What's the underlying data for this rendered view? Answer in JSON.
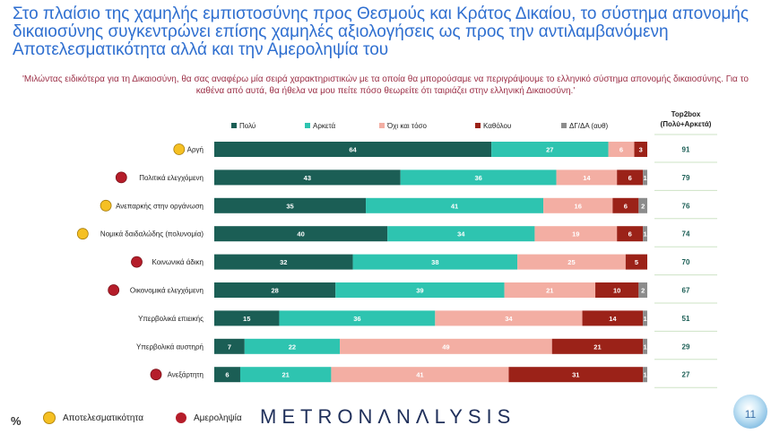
{
  "title_lines": [
    "Στο πλαίσιο της χαμηλής εμπιστοσύνης προς Θεσμούς και Κράτος Δικαίου, το σύστημα απονομής",
    "δικαιοσύνης συγκεντρώνει επίσης χαμηλές αξιολογήσεις ως προς την  αντιλαμβανόμενη",
    "Αποτελεσματικότητα αλλά και την Αμεροληψία του"
  ],
  "quote_lines": [
    "'Μιλώντας ειδικότερα για τη Δικαιοσύνη, θα σας αναφέρω μία σειρά χαρακτηριστικών με τα οποία θα μπορούσαμε να περιγράψουμε το ελληνικό σύστημα απονομής δικαιοσύνης. Για το",
    "καθένα από αυτά, θα ήθελα να μου πείτε πόσο θεωρείτε ότι ταιριάζει στην ελληνική Δικαιοσύνη.'"
  ],
  "colors": {
    "Πολύ": "#1b5e55",
    "Αρκετά": "#2ec4b0",
    "Όχι και τόσο": "#f3aea3",
    "Καθόλου": "#9b2218",
    "ΔΓ/ΔΑ (αυθ)": "#8c8c8c",
    "dot_yellow": "#f5c023",
    "dot_red": "#b51d2a"
  },
  "chart_data": {
    "type": "bar",
    "orientation": "horizontal",
    "stacked": true,
    "categories": [
      "Αργή",
      "Πολιτικά ελεγχόμενη",
      "Ανεπαρκής στην οργάνωση",
      "Νομικά δαιδαλώδης (πολυνομία)",
      "Κοινωνικά άδικη",
      "Οικονομικά ελεγχόμενη",
      "Υπερβολικά επιεικής",
      "Υπερβολικά αυστηρή",
      "Ανεξάρτητη"
    ],
    "category_marker": [
      "yellow",
      "red",
      "yellow",
      "yellow",
      "red",
      "red",
      "none",
      "none",
      "red"
    ],
    "series": [
      {
        "name": "Πολύ",
        "values": [
          64,
          43,
          35,
          40,
          32,
          28,
          15,
          7,
          6
        ]
      },
      {
        "name": "Αρκετά",
        "values": [
          27,
          36,
          41,
          34,
          38,
          39,
          36,
          22,
          21
        ]
      },
      {
        "name": "Όχι και τόσο",
        "values": [
          6,
          14,
          16,
          19,
          25,
          21,
          34,
          49,
          41
        ]
      },
      {
        "name": "Καθόλου",
        "values": [
          3,
          6,
          6,
          6,
          5,
          10,
          14,
          21,
          31
        ]
      },
      {
        "name": "ΔΓ/ΔΑ (αυθ)",
        "values": [
          0,
          1,
          2,
          1,
          0,
          2,
          1,
          1,
          1
        ]
      }
    ],
    "top2box_header": [
      "Top2box",
      "(Πολύ+Αρκετά)"
    ],
    "top2box": [
      91,
      79,
      76,
      74,
      70,
      67,
      51,
      29,
      27
    ],
    "legend_position": "top"
  },
  "bottom_legend": {
    "yellow_label": "Αποτελεσματικότητα",
    "red_label": "Αμεροληψία"
  },
  "percent_sign": "%",
  "logo_text": "METRONANALYSIS",
  "page_number": "11"
}
